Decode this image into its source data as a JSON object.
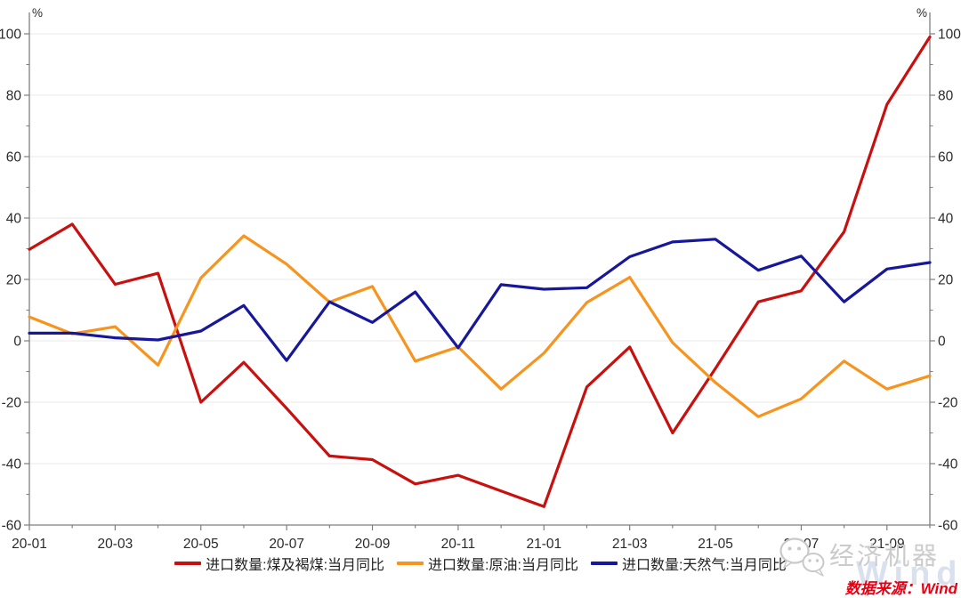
{
  "chart_data": {
    "type": "line",
    "title": "",
    "unit": "%",
    "x": [
      "20-01",
      "20-02",
      "20-03",
      "20-04",
      "20-05",
      "20-06",
      "20-07",
      "20-08",
      "20-09",
      "20-10",
      "20-11",
      "20-12",
      "21-01",
      "21-02",
      "21-03",
      "21-04",
      "21-05",
      "21-06",
      "21-07",
      "21-08",
      "21-09",
      "21-10"
    ],
    "x_label_every": 2,
    "ylim": [
      -60,
      100
    ],
    "ytick_step": 20,
    "y_minor_step": 10,
    "grid": "horizontal",
    "legend_position": "bottom",
    "axis_color": "#7f7f7f",
    "grid_color": "#e9e9e9",
    "tick_label_color": "#2b2b2b",
    "series": [
      {
        "name": "进口数量:煤及褐煤:当月同比",
        "color": "#c8100f",
        "values": [
          29.8,
          38.0,
          18.4,
          22.0,
          -20.0,
          -7.0,
          -22.0,
          -37.5,
          -38.7,
          -46.6,
          -43.8,
          -48.9,
          -54.0,
          -15.0,
          -2.0,
          -30.0,
          -9.0,
          12.7,
          16.3,
          35.5,
          77.0,
          99.0
        ]
      },
      {
        "name": "进口数量:原油:当月同比",
        "color": "#f7941e",
        "values": [
          7.8,
          2.3,
          4.6,
          -7.9,
          20.5,
          34.2,
          25.0,
          12.6,
          17.7,
          -6.6,
          -2.0,
          -15.7,
          -4.0,
          12.5,
          20.7,
          -0.6,
          -13.6,
          -24.7,
          -18.9,
          -6.6,
          -15.7,
          -11.4
        ]
      },
      {
        "name": "进口数量:天然气:当月同比",
        "color": "#17179b",
        "values": [
          2.5,
          2.5,
          1.0,
          0.3,
          3.2,
          11.5,
          -6.4,
          12.7,
          6.0,
          15.9,
          -2.3,
          18.3,
          16.8,
          17.3,
          27.4,
          32.2,
          33.1,
          23.0,
          27.6,
          12.7,
          23.4,
          25.5
        ]
      }
    ]
  },
  "watermark": {
    "brand": "经济机器",
    "wind": "Wind"
  },
  "source": {
    "text": "数据来源：Wind"
  }
}
